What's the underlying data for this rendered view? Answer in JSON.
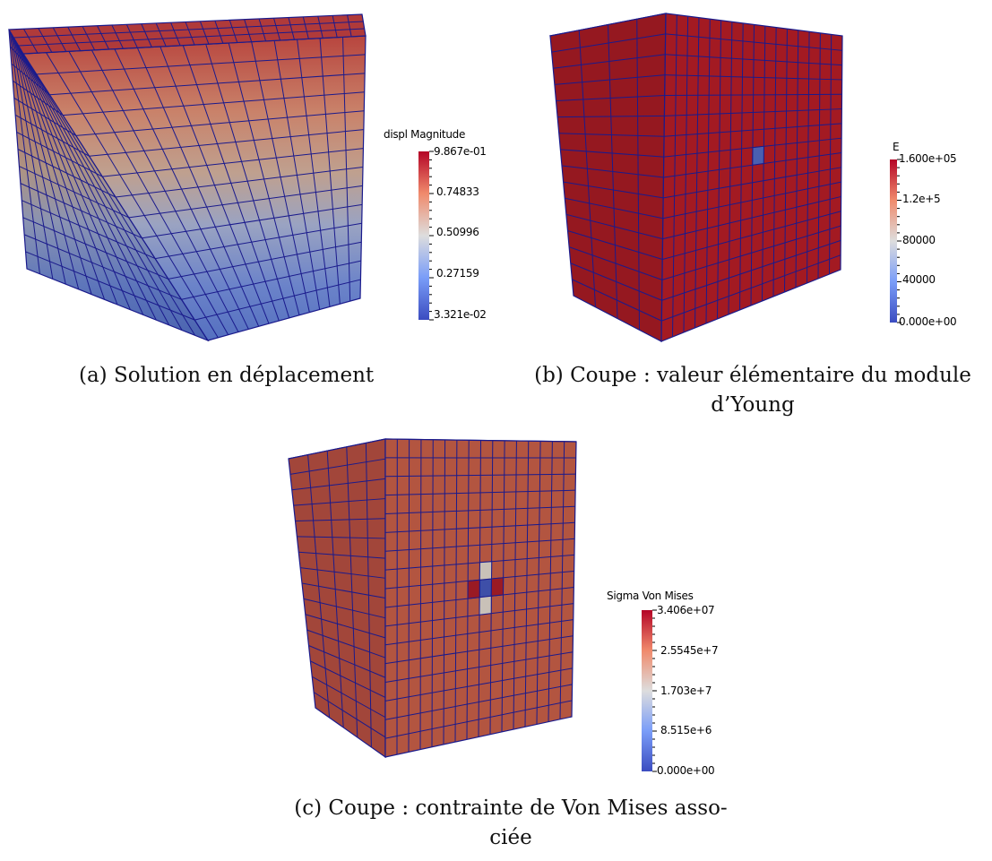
{
  "panels": [
    {
      "id": "a",
      "caption_lines": [
        "(a) Solution en déplacement"
      ],
      "legend": {
        "title": "displ Magnitude",
        "labels": [
          "9.867e-01",
          "0.74833",
          "0.50996",
          "0.27159",
          "3.321e-02"
        ],
        "colors": {
          "high": "#b40426",
          "mid": "#dddddd",
          "low": "#3b4cc0"
        }
      }
    },
    {
      "id": "b",
      "caption_lines": [
        "(b) Coupe : valeur élémentaire du module",
        "d’Young"
      ],
      "legend": {
        "title": "E",
        "labels": [
          "1.600e+05",
          "1.2e+5",
          "80000",
          "40000",
          "0.000e+00"
        ],
        "colors": {
          "high": "#b40426",
          "mid": "#dddddd",
          "low": "#3b4cc0"
        }
      }
    },
    {
      "id": "c",
      "caption_lines": [
        "(c) Coupe : contrainte de Von Mises asso-",
        "ciée"
      ],
      "legend": {
        "title": "Sigma Von Mises",
        "labels": [
          "3.406e+07",
          "2.5545e+7",
          "1.703e+7",
          "8.515e+6",
          "0.000e+00"
        ],
        "colors": {
          "high": "#b40426",
          "mid": "#dddddd",
          "low": "#3b4cc0"
        }
      }
    }
  ],
  "mesh_color": "#1a1a8c"
}
